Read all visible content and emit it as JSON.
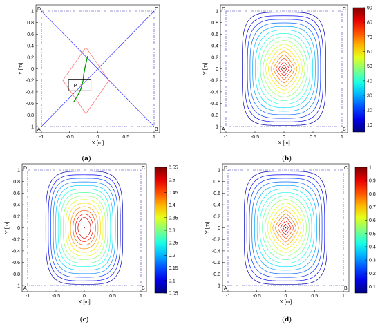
{
  "chart_data": [
    {
      "type": "line",
      "panel": "(a)",
      "panel_label_text": "a",
      "xlabel": "X [m]",
      "ylabel": "Y [m]",
      "xlim": [
        -1,
        1
      ],
      "ylim": [
        -1,
        1
      ],
      "xticks": [
        "-1",
        "-0.5",
        "0",
        "0.5",
        "1"
      ],
      "yticks": [
        "1",
        "0.8",
        "0.6",
        "0.4",
        "0.2",
        "0",
        "-0.2",
        "-0.4",
        "-0.6",
        "-0.8",
        "-1"
      ],
      "corners": {
        "A": [
          -1,
          -1
        ],
        "B": [
          1,
          -1
        ],
        "C": [
          1,
          1
        ],
        "D": [
          -1,
          1
        ]
      },
      "point_label": "P",
      "point": [
        -0.28,
        -0.28
      ],
      "series": [
        {
          "color": "#3333ff",
          "x": [
            -1,
            1
          ],
          "y": [
            1,
            -1
          ]
        },
        {
          "color": "#3333ff",
          "x": [
            -1,
            1
          ],
          "y": [
            -1,
            1
          ]
        },
        {
          "color": "#ff6666",
          "x": [
            -0.21,
            0.2,
            -0.21,
            -0.62,
            -0.21
          ],
          "y": [
            0.37,
            -0.2,
            -0.78,
            -0.2,
            0.37
          ]
        },
        {
          "color": "#009900",
          "x": [
            -0.18,
            -0.22,
            -0.25,
            -0.26,
            -0.3,
            -0.35,
            -0.43
          ],
          "y": [
            0.22,
            0.05,
            -0.1,
            -0.2,
            -0.35,
            -0.45,
            -0.58
          ]
        },
        {
          "color": "#000000",
          "x": [
            -0.52,
            -0.12,
            -0.12,
            -0.52,
            -0.52
          ],
          "y": [
            -0.18,
            -0.18,
            -0.38,
            -0.38,
            -0.18
          ]
        }
      ]
    },
    {
      "type": "contour",
      "panel": "(b)",
      "panel_label_text": "b",
      "xlabel": "X [m]",
      "ylabel": "Y [m]",
      "xlim": [
        -1,
        1
      ],
      "ylim": [
        -1,
        1
      ],
      "xticks": [
        "-1",
        "-0.5",
        "0",
        "0.5",
        "1"
      ],
      "yticks": [
        "1",
        "0.8",
        "0.6",
        "0.4",
        "0.2",
        "0",
        "-0.2",
        "-0.4",
        "-0.6",
        "-0.8",
        "-1"
      ],
      "corners": {
        "A": [
          -1,
          -1
        ],
        "B": [
          1,
          -1
        ],
        "C": [
          1,
          1
        ],
        "D": [
          -1,
          1
        ]
      },
      "colorbar": {
        "min": 5,
        "max": 90,
        "ticks": [
          "90",
          "80",
          "70",
          "60",
          "50",
          "40",
          "30",
          "20",
          "10"
        ]
      },
      "levels": 16,
      "outer_half_width": 0.72,
      "outer_half_height": 0.98
    },
    {
      "type": "contour",
      "panel": "(c)",
      "panel_label_text": "c",
      "xlabel": "X [m]",
      "ylabel": "Y [m]",
      "xlim": [
        -1,
        1
      ],
      "ylim": [
        -1,
        1
      ],
      "xticks": [
        "-1",
        "-0.5",
        "0",
        "0.5",
        "1"
      ],
      "yticks": [
        "1",
        "0.8",
        "0.6",
        "0.4",
        "0.2",
        "0",
        "-0.2",
        "-0.4",
        "-0.6",
        "-0.8",
        "-1"
      ],
      "corners": {
        "A": [
          -1,
          -1
        ],
        "B": [
          1,
          -1
        ],
        "C": [
          1,
          1
        ],
        "D": [
          -1,
          1
        ]
      },
      "colorbar": {
        "min": 0.05,
        "max": 0.55,
        "ticks": [
          "0.55",
          "0.5",
          "0.45",
          "0.4",
          "0.35",
          "0.3",
          "0.25",
          "0.2",
          "0.15",
          "0.1",
          "0.05"
        ]
      },
      "levels": 14,
      "outer_half_width": 0.68,
      "outer_half_height": 0.98
    },
    {
      "type": "contour",
      "panel": "(d)",
      "panel_label_text": "d",
      "xlabel": "X [m]",
      "ylabel": "Y [m]",
      "xlim": [
        -1,
        1
      ],
      "ylim": [
        -1,
        1
      ],
      "xticks": [
        "-1",
        "-0.5",
        "0",
        "0.5",
        "1"
      ],
      "yticks": [
        "1",
        "0.8",
        "0.6",
        "0.4",
        "0.2",
        "0",
        "-0.2",
        "-0.4",
        "-0.6",
        "-0.8",
        "-1"
      ],
      "corners": {
        "A": [
          -1,
          -1
        ],
        "B": [
          1,
          -1
        ],
        "C": [
          1,
          1
        ],
        "D": [
          -1,
          1
        ]
      },
      "colorbar": {
        "min": 0.05,
        "max": 1,
        "ticks": [
          "1",
          "0.9",
          "0.8",
          "0.7",
          "0.6",
          "0.5",
          "0.4",
          "0.3",
          "0.2",
          "0.1"
        ]
      },
      "levels": 16,
      "outer_half_width": 0.72,
      "outer_half_height": 0.98
    }
  ]
}
